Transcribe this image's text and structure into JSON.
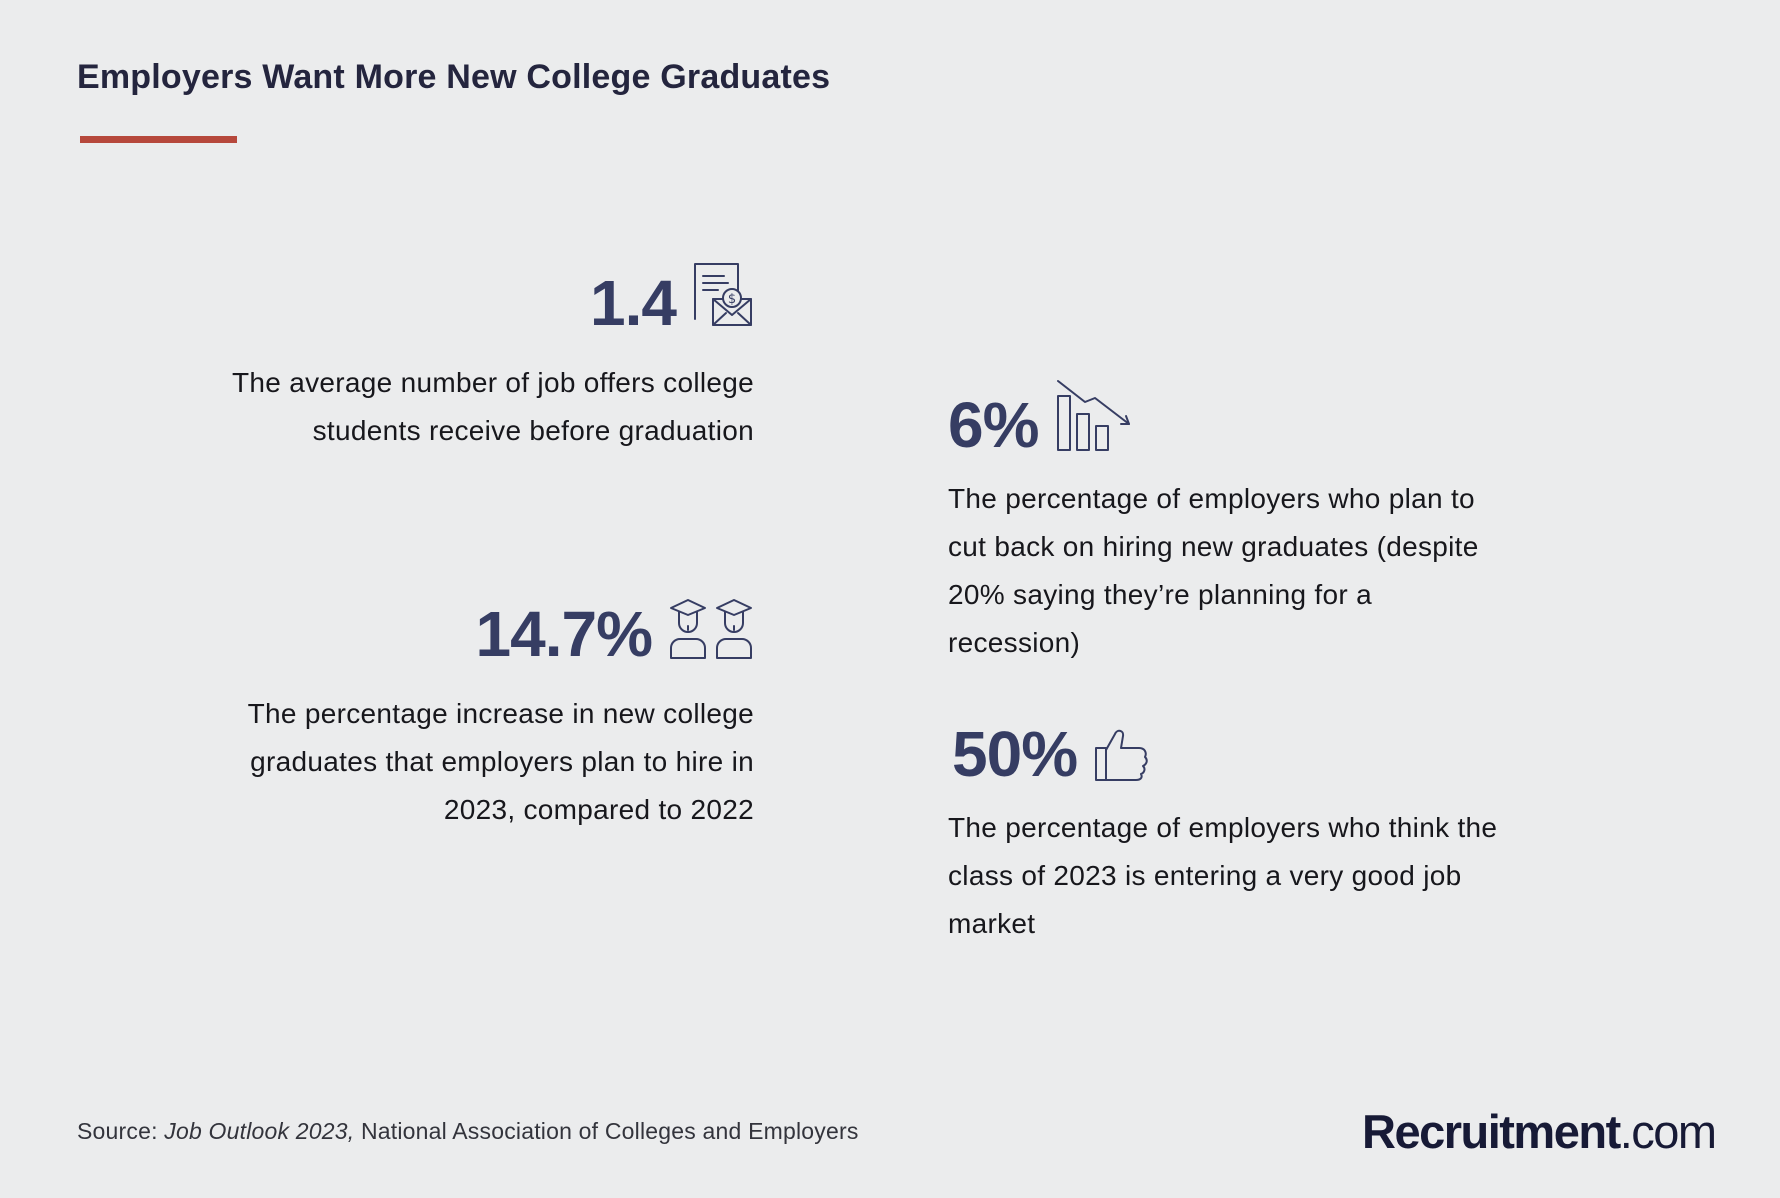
{
  "header": {
    "title": "Employers Want More New College Graduates"
  },
  "stats": [
    {
      "value": "1.4",
      "icon": "job-offer-envelope-icon",
      "description": "The average number of job offers college students receive before graduation"
    },
    {
      "value": "14.7%",
      "icon": "graduates-icon",
      "description": "The percentage increase in new college graduates that employers plan to hire in 2023, compared to 2022"
    },
    {
      "value": "6%",
      "icon": "declining-bar-chart-icon",
      "description": "The percentage of employers who plan to cut back on hiring new graduates (despite 20% saying they’re planning for a recession)"
    },
    {
      "value": "50%",
      "icon": "thumbs-up-icon",
      "description": "The percentage of employers who think the class of 2023 is entering a very good job market"
    }
  ],
  "footer": {
    "source_label": "Source:",
    "source_title": "Job Outlook 2023,",
    "source_org": "National Association of Colleges and Employers",
    "brand_name": "Recruitment",
    "brand_domain": ".com"
  },
  "colors": {
    "background": "#ebeced",
    "title": "#24253e",
    "accent_rule": "#b6483c",
    "stat_value": "#363d63",
    "body_text": "#17171c"
  }
}
